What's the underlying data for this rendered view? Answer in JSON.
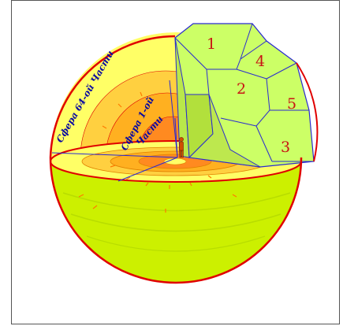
{
  "labels": {
    "outer_sphere": "Сфера 64-ой Части",
    "inner_sphere_line1": "Сфера 1-ой",
    "inner_sphere_line2": "Части"
  },
  "segments": [
    "1",
    "2",
    "3",
    "4",
    "5"
  ],
  "colors": {
    "frame_border": "#555555",
    "sphere_outline": "#e00000",
    "outer_shell": "#ffff66",
    "mid_shell": "#ffd040",
    "inner_shell": "#ffb020",
    "core": "#ff8a20",
    "lower_hemisphere": "#ccf000",
    "segments_fill": "#ccff66",
    "grid_lines": "#2a2ad0",
    "label_text": "#0a0aa0",
    "number_text": "#c81414"
  },
  "icons": {
    "human_figure": "human-figure-icon",
    "radial_arrows": "arrow-icon"
  }
}
